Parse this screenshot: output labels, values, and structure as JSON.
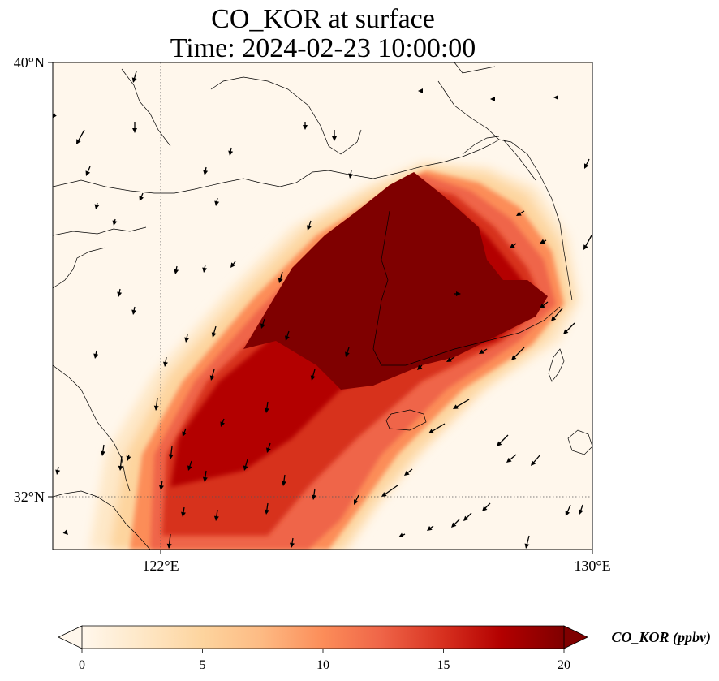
{
  "title": {
    "line1": "CO_KOR at surface",
    "line2": "Time: 2024-02-23 10:00:00"
  },
  "map": {
    "lat_ticks": [
      "40°N",
      "32°N"
    ],
    "lon_ticks": [
      "122°E",
      "130°E"
    ],
    "extent": {
      "lon": [
        120,
        130
      ],
      "lat": [
        31,
        40
      ]
    },
    "gridlines": "dotted at 122°E and 32°N"
  },
  "colorbar": {
    "label": "CO_KOR (ppbv)",
    "ticks": [
      "0",
      "5",
      "10",
      "15",
      "20"
    ],
    "range": [
      0,
      20
    ],
    "colormap": "OrRd",
    "extend": "both",
    "colors": [
      "#fff7ec",
      "#fee8c8",
      "#fdd49e",
      "#fdbb84",
      "#fc8d59",
      "#ef6548",
      "#d7301f",
      "#b30000",
      "#7f0000"
    ]
  },
  "chart_data": {
    "type": "heatmap",
    "variable": "CO_KOR",
    "units": "ppbv",
    "plume": "high concentrations (≥20 ppbv) over Korean peninsula and Yellow Sea, extending southwest toward Shanghai",
    "wind_vectors": "generally northeast-to-southwest flow"
  }
}
